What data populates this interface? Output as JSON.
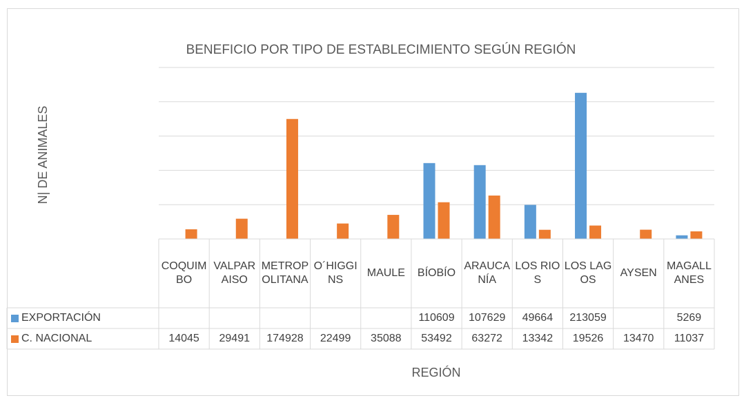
{
  "chart_data": {
    "type": "bar",
    "title": "BENEFICIO POR TIPO DE ESTABLECIMIENTO SEGÚN REGIÓN",
    "y_label": "N| DE ANIMALES",
    "x_label": "REGIÓN",
    "categories": [
      "COQUIMBO",
      "VALPARAISO",
      "METROPOLITANA",
      "O´HIGGINS",
      "MAULE",
      "BÍOBÍO",
      "ARAUCANÍA",
      "LOS RIOS",
      "LOS LAGOS",
      "AYSEN",
      "MAGALLANES"
    ],
    "series": [
      {
        "name": "EXPORTACIÓN",
        "color": "#5b9bd5",
        "values": [
          null,
          null,
          null,
          null,
          null,
          110609,
          107629,
          49664,
          213059,
          null,
          5269
        ]
      },
      {
        "name": "C. NACIONAL",
        "color": "#ed7d31",
        "values": [
          14045,
          29491,
          174928,
          22499,
          35088,
          53492,
          63272,
          13342,
          19526,
          13470,
          11037
        ]
      }
    ],
    "ylim": [
      0,
      250000
    ],
    "yticks": [
      0,
      50000,
      100000,
      150000,
      200000,
      250000
    ],
    "grid": true,
    "data_table": true
  }
}
